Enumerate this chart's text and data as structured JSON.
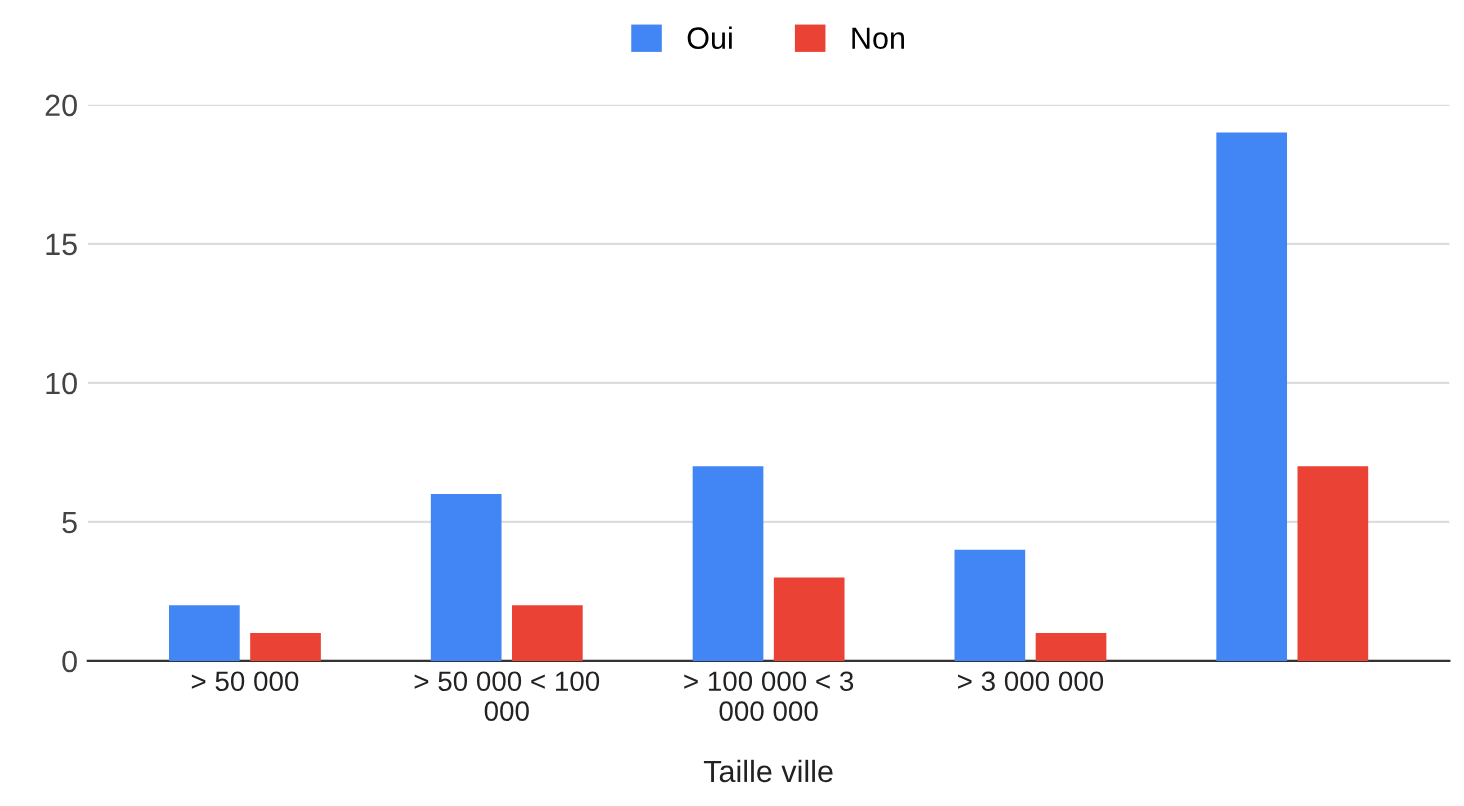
{
  "chart_data": {
    "type": "bar",
    "xlabel": "Taille ville",
    "categories": [
      "> 50 000",
      "> 50 000 < 100\n000",
      "> 100 000 < 3\n000 000",
      "> 3 000 000",
      null
    ],
    "series": [
      {
        "name": "Oui",
        "color": "#4285f4",
        "values": [
          2,
          6,
          7,
          4,
          19
        ]
      },
      {
        "name": "Non",
        "color": "#ea4335",
        "values": [
          1,
          2,
          3,
          1,
          7
        ]
      }
    ],
    "ylim": [
      0,
      20
    ],
    "yticks": [
      0,
      5,
      10,
      15,
      20
    ],
    "grid": "y",
    "legend": "top"
  }
}
